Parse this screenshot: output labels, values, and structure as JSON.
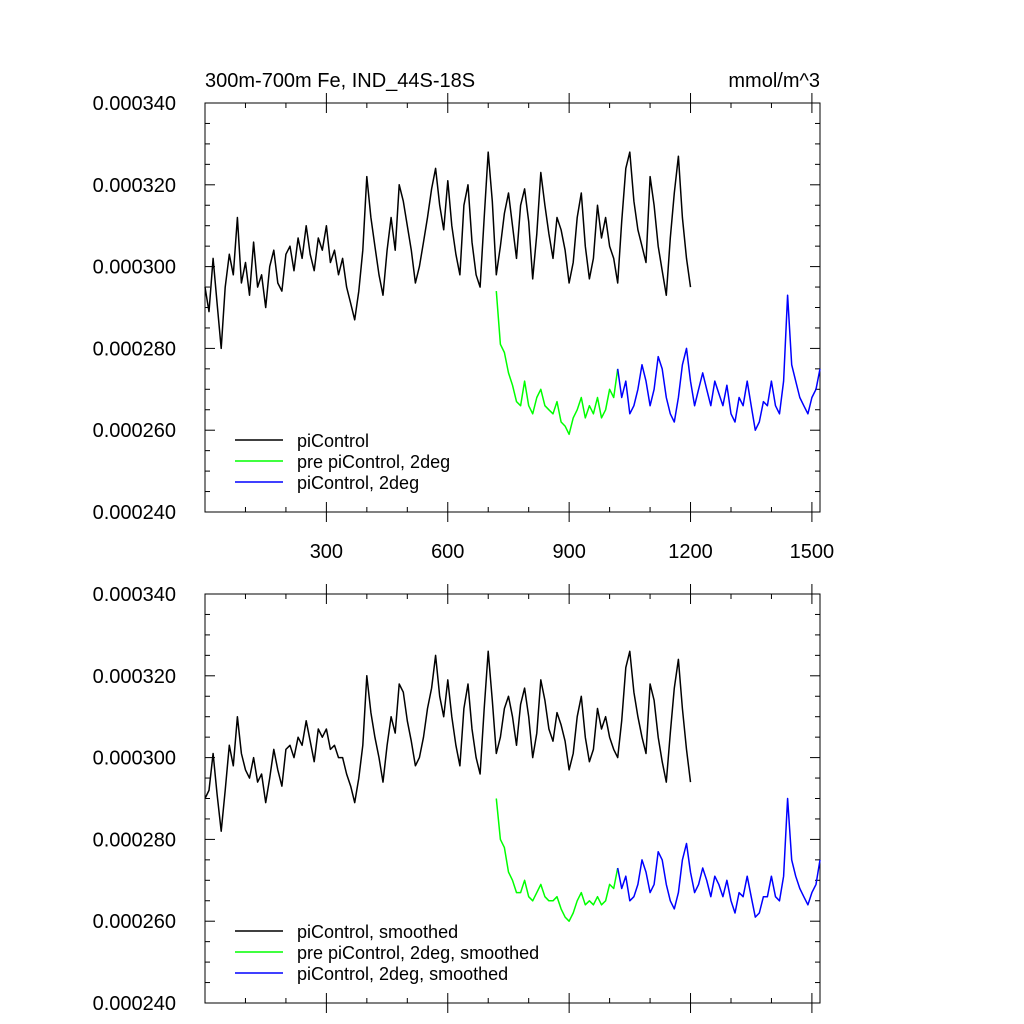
{
  "chart_data": [
    {
      "type": "line",
      "title": "300m-700m Fe, IND_44S-18S",
      "units": "mmol/m^3",
      "xlim": [
        0,
        1520
      ],
      "ylim": [
        0.00024,
        0.00034
      ],
      "xticks": [
        300,
        600,
        900,
        1200,
        1500
      ],
      "x_tick_labels": [
        "300",
        "600",
        "900",
        "1200",
        "1500"
      ],
      "yticks": [
        0.00024,
        0.00026,
        0.00028,
        0.0003,
        0.00032,
        0.00034
      ],
      "y_tick_labels": [
        "0.000240",
        "0.000260",
        "0.000280",
        "0.000300",
        "0.000320",
        "0.000340"
      ],
      "legend_position": "bottom-left",
      "series": [
        {
          "name": "piControl",
          "color": "#000000",
          "x": [
            0,
            10,
            20,
            30,
            40,
            50,
            60,
            70,
            80,
            90,
            100,
            110,
            120,
            130,
            140,
            150,
            160,
            170,
            180,
            190,
            200,
            210,
            220,
            230,
            240,
            250,
            260,
            270,
            280,
            290,
            300,
            310,
            320,
            330,
            340,
            350,
            360,
            370,
            380,
            390,
            400,
            410,
            420,
            430,
            440,
            450,
            460,
            470,
            480,
            490,
            500,
            510,
            520,
            530,
            540,
            550,
            560,
            570,
            580,
            590,
            600,
            610,
            620,
            630,
            640,
            650,
            660,
            670,
            680,
            690,
            700,
            710,
            720,
            730,
            740,
            750,
            760,
            770,
            780,
            790,
            800,
            810,
            820,
            830,
            840,
            850,
            860,
            870,
            880,
            890,
            900,
            910,
            920,
            930,
            940,
            950,
            960,
            970,
            980,
            990,
            1000,
            1010,
            1020,
            1030,
            1040,
            1050,
            1060,
            1070,
            1080,
            1090,
            1100,
            1110,
            1120,
            1130,
            1140,
            1150,
            1160,
            1170,
            1180,
            1190,
            1200
          ],
          "values": [
            0.000295,
            0.000289,
            0.000302,
            0.000291,
            0.00028,
            0.000295,
            0.000303,
            0.000298,
            0.000312,
            0.000296,
            0.000301,
            0.000293,
            0.000306,
            0.000295,
            0.000298,
            0.00029,
            0.0003,
            0.000304,
            0.000296,
            0.000294,
            0.000303,
            0.000305,
            0.000299,
            0.000307,
            0.000302,
            0.00031,
            0.000303,
            0.000299,
            0.000307,
            0.000304,
            0.00031,
            0.000301,
            0.000304,
            0.000298,
            0.000302,
            0.000295,
            0.000291,
            0.000287,
            0.000294,
            0.000304,
            0.000322,
            0.000312,
            0.000305,
            0.000298,
            0.000293,
            0.000304,
            0.000312,
            0.000304,
            0.00032,
            0.000316,
            0.00031,
            0.000304,
            0.000296,
            0.0003,
            0.000306,
            0.000312,
            0.000319,
            0.000324,
            0.000315,
            0.000309,
            0.000321,
            0.00031,
            0.000303,
            0.000298,
            0.000315,
            0.00032,
            0.000306,
            0.000298,
            0.000295,
            0.000312,
            0.000328,
            0.000316,
            0.000298,
            0.000305,
            0.000313,
            0.000318,
            0.00031,
            0.000302,
            0.000315,
            0.000319,
            0.000311,
            0.000297,
            0.000308,
            0.000323,
            0.000315,
            0.000308,
            0.000302,
            0.000312,
            0.000309,
            0.000304,
            0.000296,
            0.000301,
            0.000312,
            0.000318,
            0.000305,
            0.000297,
            0.000302,
            0.000315,
            0.000307,
            0.000312,
            0.000305,
            0.000302,
            0.000296,
            0.000311,
            0.000324,
            0.000328,
            0.000316,
            0.000309,
            0.000305,
            0.000301,
            0.000322,
            0.000315,
            0.000305,
            0.000299,
            0.000293,
            0.000307,
            0.000318,
            0.000327,
            0.000312,
            0.000302,
            0.000295
          ]
        },
        {
          "name": "pre piControl, 2deg",
          "color": "#00ff00",
          "x": [
            720,
            730,
            740,
            750,
            760,
            770,
            780,
            790,
            800,
            810,
            820,
            830,
            840,
            850,
            860,
            870,
            880,
            890,
            900,
            910,
            920,
            930,
            940,
            950,
            960,
            970,
            980,
            990,
            1000,
            1010,
            1020
          ],
          "values": [
            0.000294,
            0.000281,
            0.000279,
            0.000274,
            0.000271,
            0.000267,
            0.000266,
            0.000272,
            0.000266,
            0.000264,
            0.000268,
            0.00027,
            0.000266,
            0.000265,
            0.000264,
            0.000267,
            0.000262,
            0.000261,
            0.000259,
            0.000263,
            0.000265,
            0.000268,
            0.000263,
            0.000266,
            0.000264,
            0.000268,
            0.000263,
            0.000265,
            0.00027,
            0.000268,
            0.000275
          ]
        },
        {
          "name": "piControl, 2deg",
          "color": "#0000ff",
          "x": [
            1020,
            1030,
            1040,
            1050,
            1060,
            1070,
            1080,
            1090,
            1100,
            1110,
            1120,
            1130,
            1140,
            1150,
            1160,
            1170,
            1180,
            1190,
            1200,
            1210,
            1220,
            1230,
            1240,
            1250,
            1260,
            1270,
            1280,
            1290,
            1300,
            1310,
            1320,
            1330,
            1340,
            1350,
            1360,
            1370,
            1380,
            1390,
            1400,
            1410,
            1420,
            1430,
            1440,
            1450,
            1460,
            1470,
            1480,
            1490,
            1500,
            1510,
            1520
          ],
          "values": [
            0.000275,
            0.000268,
            0.000272,
            0.000264,
            0.000266,
            0.00027,
            0.000276,
            0.000272,
            0.000266,
            0.00027,
            0.000278,
            0.000275,
            0.000268,
            0.000264,
            0.000262,
            0.000268,
            0.000276,
            0.00028,
            0.000272,
            0.000266,
            0.00027,
            0.000274,
            0.00027,
            0.000266,
            0.000272,
            0.000269,
            0.000266,
            0.000271,
            0.000264,
            0.000262,
            0.000268,
            0.000266,
            0.000272,
            0.000266,
            0.00026,
            0.000262,
            0.000267,
            0.000266,
            0.000272,
            0.000266,
            0.000264,
            0.000272,
            0.000293,
            0.000276,
            0.000272,
            0.000268,
            0.000266,
            0.000264,
            0.000268,
            0.00027,
            0.000275
          ]
        }
      ]
    },
    {
      "type": "line",
      "xlim": [
        0,
        1520
      ],
      "ylim": [
        0.00024,
        0.00034
      ],
      "xticks": [
        300,
        600,
        900,
        1200,
        1500
      ],
      "yticks": [
        0.00024,
        0.00026,
        0.00028,
        0.0003,
        0.00032,
        0.00034
      ],
      "y_tick_labels": [
        "0.000240",
        "0.000260",
        "0.000280",
        "0.000300",
        "0.000320",
        "0.000340"
      ],
      "legend_position": "bottom-left",
      "series": [
        {
          "name": "piControl, smoothed",
          "color": "#000000",
          "x": [
            0,
            10,
            20,
            30,
            40,
            50,
            60,
            70,
            80,
            90,
            100,
            110,
            120,
            130,
            140,
            150,
            160,
            170,
            180,
            190,
            200,
            210,
            220,
            230,
            240,
            250,
            260,
            270,
            280,
            290,
            300,
            310,
            320,
            330,
            340,
            350,
            360,
            370,
            380,
            390,
            400,
            410,
            420,
            430,
            440,
            450,
            460,
            470,
            480,
            490,
            500,
            510,
            520,
            530,
            540,
            550,
            560,
            570,
            580,
            590,
            600,
            610,
            620,
            630,
            640,
            650,
            660,
            670,
            680,
            690,
            700,
            710,
            720,
            730,
            740,
            750,
            760,
            770,
            780,
            790,
            800,
            810,
            820,
            830,
            840,
            850,
            860,
            870,
            880,
            890,
            900,
            910,
            920,
            930,
            940,
            950,
            960,
            970,
            980,
            990,
            1000,
            1010,
            1020,
            1030,
            1040,
            1050,
            1060,
            1070,
            1080,
            1090,
            1100,
            1110,
            1120,
            1130,
            1140,
            1150,
            1160,
            1170,
            1180,
            1190,
            1200
          ],
          "values": [
            0.00029,
            0.000292,
            0.000301,
            0.000291,
            0.000282,
            0.000292,
            0.000303,
            0.000298,
            0.00031,
            0.000301,
            0.000297,
            0.000295,
            0.0003,
            0.000294,
            0.000296,
            0.000289,
            0.000295,
            0.000302,
            0.000297,
            0.000293,
            0.000302,
            0.000303,
            0.0003,
            0.000305,
            0.000303,
            0.000309,
            0.000304,
            0.000299,
            0.000307,
            0.000305,
            0.000307,
            0.000302,
            0.000303,
            0.0003,
            0.0003,
            0.000296,
            0.000293,
            0.000289,
            0.000295,
            0.000303,
            0.00032,
            0.000311,
            0.000305,
            0.0003,
            0.000294,
            0.000303,
            0.00031,
            0.000306,
            0.000318,
            0.000316,
            0.000309,
            0.000304,
            0.000298,
            0.0003,
            0.000305,
            0.000312,
            0.000317,
            0.000325,
            0.000315,
            0.00031,
            0.000319,
            0.00031,
            0.000303,
            0.000298,
            0.000312,
            0.000318,
            0.000307,
            0.0003,
            0.000296,
            0.000312,
            0.000326,
            0.000314,
            0.000301,
            0.000305,
            0.000312,
            0.000315,
            0.00031,
            0.000303,
            0.000313,
            0.000317,
            0.00031,
            0.0003,
            0.000306,
            0.000319,
            0.000314,
            0.000307,
            0.000304,
            0.000311,
            0.000308,
            0.000304,
            0.000297,
            0.000301,
            0.00031,
            0.000315,
            0.000305,
            0.000299,
            0.000302,
            0.000312,
            0.000307,
            0.00031,
            0.000305,
            0.000302,
            0.0003,
            0.000309,
            0.000322,
            0.000326,
            0.000316,
            0.00031,
            0.000305,
            0.000301,
            0.000318,
            0.000314,
            0.000305,
            0.000299,
            0.000294,
            0.000306,
            0.000317,
            0.000324,
            0.000312,
            0.000302,
            0.000294
          ]
        },
        {
          "name": "pre piControl, 2deg, smoothed",
          "color": "#00ff00",
          "x": [
            720,
            730,
            740,
            750,
            760,
            770,
            780,
            790,
            800,
            810,
            820,
            830,
            840,
            850,
            860,
            870,
            880,
            890,
            900,
            910,
            920,
            930,
            940,
            950,
            960,
            970,
            980,
            990,
            1000,
            1010,
            1020
          ],
          "values": [
            0.00029,
            0.00028,
            0.000278,
            0.000272,
            0.00027,
            0.000267,
            0.000267,
            0.00027,
            0.000266,
            0.000265,
            0.000267,
            0.000269,
            0.000266,
            0.000265,
            0.000265,
            0.000266,
            0.000263,
            0.000261,
            0.00026,
            0.000262,
            0.000265,
            0.000267,
            0.000264,
            0.000265,
            0.000264,
            0.000266,
            0.000264,
            0.000265,
            0.000269,
            0.000268,
            0.000273
          ]
        },
        {
          "name": "piControl, 2deg, smoothed",
          "color": "#0000ff",
          "x": [
            1020,
            1030,
            1040,
            1050,
            1060,
            1070,
            1080,
            1090,
            1100,
            1110,
            1120,
            1130,
            1140,
            1150,
            1160,
            1170,
            1180,
            1190,
            1200,
            1210,
            1220,
            1230,
            1240,
            1250,
            1260,
            1270,
            1280,
            1290,
            1300,
            1310,
            1320,
            1330,
            1340,
            1350,
            1360,
            1370,
            1380,
            1390,
            1400,
            1410,
            1420,
            1430,
            1440,
            1450,
            1460,
            1470,
            1480,
            1490,
            1500,
            1510,
            1520
          ],
          "values": [
            0.000273,
            0.000268,
            0.000271,
            0.000265,
            0.000266,
            0.000269,
            0.000275,
            0.000272,
            0.000267,
            0.000269,
            0.000277,
            0.000275,
            0.000269,
            0.000265,
            0.000263,
            0.000267,
            0.000275,
            0.000279,
            0.000272,
            0.000267,
            0.000269,
            0.000273,
            0.00027,
            0.000266,
            0.000271,
            0.000269,
            0.000266,
            0.00027,
            0.000265,
            0.000262,
            0.000267,
            0.000266,
            0.000271,
            0.000266,
            0.000261,
            0.000262,
            0.000266,
            0.000266,
            0.000271,
            0.000266,
            0.000265,
            0.000271,
            0.00029,
            0.000275,
            0.000271,
            0.000268,
            0.000266,
            0.000264,
            0.000267,
            0.000269,
            0.000275
          ]
        }
      ]
    }
  ]
}
